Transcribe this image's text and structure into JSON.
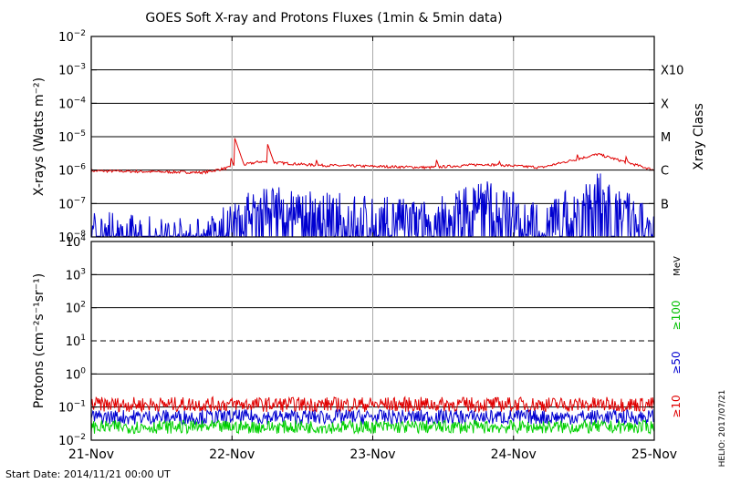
{
  "chart_data": [
    {
      "type": "line",
      "title": "GOES Soft X-ray and Protons Fluxes   (1min & 5min data)",
      "ylabel": "X-rays (Watts m⁻²)",
      "yscale": "log",
      "ylim": [
        1e-08,
        0.01
      ],
      "yticks": [
        {
          "base": "10",
          "exp": "−2"
        },
        {
          "base": "10",
          "exp": "−3"
        },
        {
          "base": "10",
          "exp": "−4"
        },
        {
          "base": "10",
          "exp": "−5"
        },
        {
          "base": "10",
          "exp": "−6"
        },
        {
          "base": "10",
          "exp": "−7"
        },
        {
          "base": "10",
          "exp": "−8"
        }
      ],
      "right_axis_label": "Xray Class",
      "class_labels": [
        "X10",
        "X",
        "M",
        "C",
        "B"
      ],
      "grid": true,
      "x": [
        "21-Nov 00:00",
        "21-Nov 12:00",
        "22-Nov 00:00",
        "22-Nov 06:00",
        "22-Nov 12:00",
        "22-Nov 18:00",
        "23-Nov 00:00",
        "23-Nov 12:00",
        "24-Nov 00:00",
        "24-Nov 12:00",
        "25-Nov 00:00"
      ],
      "series": [
        {
          "color": "#e00000",
          "values": [
            9.5e-07,
            9e-07,
            8.5e-07,
            1.8e-06,
            1.4e-06,
            1.3e-06,
            1.2e-06,
            1.5e-06,
            1.2e-06,
            3e-06,
            1e-06
          ]
        },
        {
          "color": "#0000d0",
          "values": [
            2e-08,
            1.5e-08,
            1.2e-08,
            1.2e-07,
            8e-08,
            6e-08,
            4e-08,
            2e-07,
            3e-08,
            3e-07,
            2e-08
          ]
        }
      ]
    },
    {
      "type": "line",
      "ylabel": "Protons (cm⁻²s⁻¹sr⁻¹)",
      "yscale": "log",
      "ylim": [
        0.01,
        10000
      ],
      "yticks": [
        {
          "base": "10",
          "exp": "4"
        },
        {
          "base": "10",
          "exp": "3"
        },
        {
          "base": "10",
          "exp": "2"
        },
        {
          "base": "10",
          "exp": "1"
        },
        {
          "base": "10",
          "exp": "0"
        },
        {
          "base": "10",
          "exp": "−1"
        },
        {
          "base": "10",
          "exp": "−2"
        }
      ],
      "unit_label": "MeV",
      "reference_level": 10,
      "grid": true,
      "x": [
        "21-Nov",
        "22-Nov",
        "23-Nov",
        "24-Nov",
        "25-Nov"
      ],
      "series": [
        {
          "name": "≥10",
          "color": "#e00000",
          "values": [
            0.12,
            0.12,
            0.12,
            0.12,
            0.12
          ]
        },
        {
          "name": "≥50",
          "color": "#0000d0",
          "values": [
            0.05,
            0.05,
            0.05,
            0.05,
            0.05
          ]
        },
        {
          "name": "≥100",
          "color": "#00d000",
          "values": [
            0.025,
            0.025,
            0.025,
            0.025,
            0.025
          ]
        }
      ]
    }
  ],
  "x_tick_labels": [
    "21-Nov",
    "22-Nov",
    "23-Nov",
    "24-Nov",
    "25-Nov"
  ],
  "start_date": "Start Date: 2014/11/21 00:00 UT",
  "credit": "HELIO: 2017/07/21"
}
